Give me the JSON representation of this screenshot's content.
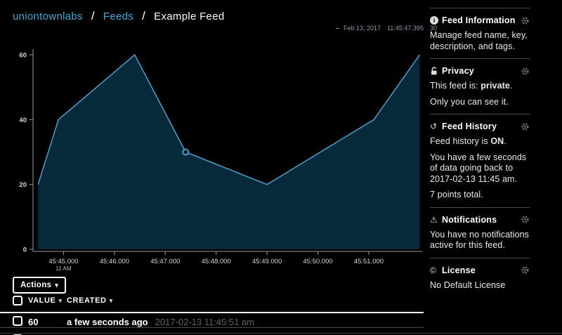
{
  "breadcrumb": {
    "separator": "/",
    "link_color": "#3fa9db",
    "items": [
      {
        "label": "uniontownlabs",
        "type": "link"
      },
      {
        "label": "Feeds",
        "type": "link"
      },
      {
        "label": "Example Feed",
        "type": "current"
      }
    ]
  },
  "chart_data": {
    "type": "area",
    "title": "",
    "xlabel": "",
    "ylabel": "",
    "x_seconds": [
      44.5,
      44.9,
      46.4,
      47.4,
      49.0,
      51.1,
      52.0
    ],
    "values": [
      20,
      40,
      60,
      30,
      20,
      40,
      60
    ],
    "points_total": 7,
    "highlight": {
      "index": 3,
      "tooltip": {
        "dash": "–",
        "date": "Feb 13, 2017",
        "time": "11:45:47.395",
        "value": "30"
      }
    },
    "x_ticks": [
      {
        "t": 45,
        "label": "45:45.000",
        "sublabel": "11 AM"
      },
      {
        "t": 46,
        "label": "45:46.000",
        "sublabel": ""
      },
      {
        "t": 47,
        "label": "45:47.000",
        "sublabel": ""
      },
      {
        "t": 48,
        "label": "45:48.000",
        "sublabel": ""
      },
      {
        "t": 49,
        "label": "45:49.000",
        "sublabel": ""
      },
      {
        "t": 50,
        "label": "45:50.000",
        "sublabel": ""
      },
      {
        "t": 51,
        "label": "45:51.000",
        "sublabel": ""
      }
    ],
    "y_ticks": [
      {
        "v": 0,
        "label": "0"
      },
      {
        "v": 20,
        "label": "20"
      },
      {
        "v": 40,
        "label": "40"
      },
      {
        "v": 60,
        "label": "60"
      }
    ],
    "xlim": [
      44.4,
      52.05
    ],
    "ylim": [
      0,
      64
    ],
    "grid": false,
    "legend_position": "top-right",
    "colors": {
      "line": "#4e9fcc",
      "fill": "#072a3a",
      "axis": "#9a9a9a",
      "tick_text": "#d8d8d8",
      "marker_fill": "#041824"
    }
  },
  "actions_button": {
    "label": "Actions",
    "caret": "▾"
  },
  "data_table": {
    "columns": [
      {
        "label": "VALUE",
        "sort_caret": "▾"
      },
      {
        "label": "CREATED",
        "sort_caret": "▾"
      }
    ],
    "rows": [
      {
        "value": "60",
        "created_relative": "a few seconds ago",
        "created_absolute": "2017-02-13 11:45:51 am"
      }
    ]
  },
  "sidebar": {
    "sections": [
      {
        "icon": "info-icon",
        "title": "Feed Information",
        "paragraphs": [
          [
            {
              "text": "Manage feed name, key, description, and tags."
            }
          ]
        ]
      },
      {
        "icon": "unlock-icon",
        "title": "Privacy",
        "paragraphs": [
          [
            {
              "text": "This feed is: "
            },
            {
              "text": "private",
              "bold": true
            },
            {
              "text": "."
            }
          ],
          [
            {
              "text": "Only you can see it."
            }
          ]
        ]
      },
      {
        "icon": "history-icon",
        "title": "Feed History",
        "paragraphs": [
          [
            {
              "text": "Feed history is "
            },
            {
              "text": "ON",
              "bold": true
            },
            {
              "text": "."
            }
          ],
          [
            {
              "text": "You have a few seconds of data going back to 2017-02-13 11:45 am."
            }
          ],
          [
            {
              "text": "7 points total."
            }
          ]
        ]
      },
      {
        "icon": "warning-icon",
        "title": "Notifications",
        "paragraphs": [
          [
            {
              "text": "You have no notifications active for this feed."
            }
          ]
        ]
      },
      {
        "icon": "license-icon",
        "title": "License",
        "paragraphs": [
          [
            {
              "text": "No Default License"
            }
          ]
        ]
      }
    ]
  }
}
